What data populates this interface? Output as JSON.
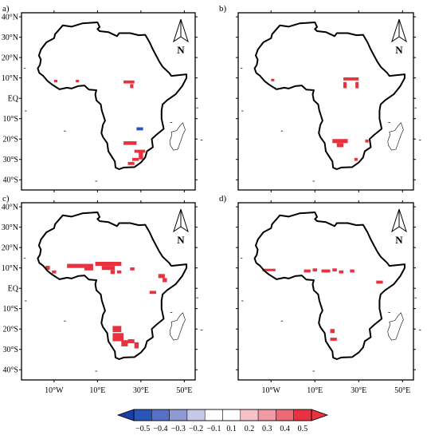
{
  "panels": [
    {
      "label": "a)",
      "show_y_labels": true,
      "show_x_labels": false,
      "cells": [
        {
          "lon": -10,
          "lat": 8.5,
          "w": 1.5,
          "h": 1.2,
          "v": 0.45
        },
        {
          "lon": 0,
          "lat": 8.5,
          "w": 1.5,
          "h": 1.2,
          "v": 0.45
        },
        {
          "lon": 22,
          "lat": 8,
          "w": 5,
          "h": 1.5,
          "v": 0.45
        },
        {
          "lon": 25,
          "lat": 6,
          "w": 1.5,
          "h": 2,
          "v": 0.45
        },
        {
          "lon": 28,
          "lat": -15,
          "w": 3,
          "h": 1.5,
          "v": -0.45
        },
        {
          "lon": 22,
          "lat": -22,
          "w": 6,
          "h": 1.8,
          "v": 0.45
        },
        {
          "lon": 27,
          "lat": -26,
          "w": 5,
          "h": 1.5,
          "v": 0.45
        },
        {
          "lon": 29,
          "lat": -28,
          "w": 2,
          "h": 4,
          "v": 0.45
        },
        {
          "lon": 26,
          "lat": -30,
          "w": 3,
          "h": 1.5,
          "v": 0.45
        },
        {
          "lon": 24,
          "lat": -32,
          "w": 3,
          "h": 1.5,
          "v": 0.45
        }
      ]
    },
    {
      "label": "b)",
      "show_y_labels": false,
      "show_x_labels": false,
      "cells": [
        {
          "lon": -10,
          "lat": 9,
          "w": 1.5,
          "h": 1.2,
          "v": 0.45
        },
        {
          "lon": 23,
          "lat": 9.5,
          "w": 7,
          "h": 1.5,
          "v": 0.45
        },
        {
          "lon": 23,
          "lat": 6.5,
          "w": 1.5,
          "h": 3,
          "v": 0.45
        },
        {
          "lon": 28.5,
          "lat": 6.5,
          "w": 1.5,
          "h": 3,
          "v": 0.45
        },
        {
          "lon": 18,
          "lat": -21,
          "w": 7,
          "h": 2,
          "v": 0.45
        },
        {
          "lon": 20,
          "lat": -23,
          "w": 3,
          "h": 2,
          "v": 0.45
        },
        {
          "lon": 33,
          "lat": -21,
          "w": 1.5,
          "h": 1.5,
          "v": 0.45
        },
        {
          "lon": 28,
          "lat": -30,
          "w": 1.5,
          "h": 1.5,
          "v": 0.45
        }
      ]
    },
    {
      "label": "c)",
      "show_y_labels": true,
      "show_x_labels": true,
      "cells": [
        {
          "lon": -14,
          "lat": 10,
          "w": 2,
          "h": 2,
          "v": 0.45
        },
        {
          "lon": -11,
          "lat": 8,
          "w": 2,
          "h": 1.5,
          "v": 0.45
        },
        {
          "lon": -4,
          "lat": 11,
          "w": 12,
          "h": 2,
          "v": 0.45
        },
        {
          "lon": 4,
          "lat": 9.5,
          "w": 4,
          "h": 1.5,
          "v": 0.45
        },
        {
          "lon": 9,
          "lat": 12,
          "w": 12,
          "h": 2,
          "v": 0.45
        },
        {
          "lon": 12,
          "lat": 10,
          "w": 6,
          "h": 2,
          "v": 0.45
        },
        {
          "lon": 16,
          "lat": 8,
          "w": 2,
          "h": 2,
          "v": 0.45
        },
        {
          "lon": 19,
          "lat": 8,
          "w": 2,
          "h": 1.5,
          "v": 0.45
        },
        {
          "lon": 25,
          "lat": 9.5,
          "w": 2,
          "h": 1.5,
          "v": 0.45
        },
        {
          "lon": 38,
          "lat": 6,
          "w": 3,
          "h": 2,
          "v": 0.45
        },
        {
          "lon": 40,
          "lat": 4,
          "w": 2,
          "h": 2,
          "v": 0.45
        },
        {
          "lon": 34,
          "lat": -2,
          "w": 3,
          "h": 1.5,
          "v": 0.45
        },
        {
          "lon": 17,
          "lat": -20,
          "w": 4,
          "h": 3,
          "v": 0.45
        },
        {
          "lon": 17,
          "lat": -24,
          "w": 5,
          "h": 4,
          "v": 0.45
        },
        {
          "lon": 21,
          "lat": -27,
          "w": 3,
          "h": 3,
          "v": 0.45
        },
        {
          "lon": 24,
          "lat": -26,
          "w": 3,
          "h": 2,
          "v": 0.45
        },
        {
          "lon": 27,
          "lat": -28,
          "w": 2,
          "h": 3,
          "v": 0.45
        }
      ]
    },
    {
      "label": "d)",
      "show_y_labels": false,
      "show_x_labels": true,
      "cells": [
        {
          "lon": -14,
          "lat": 9,
          "w": 6,
          "h": 1.2,
          "v": 0.45
        },
        {
          "lon": 5,
          "lat": 8.5,
          "w": 3,
          "h": 1.5,
          "v": 0.45
        },
        {
          "lon": 9,
          "lat": 9,
          "w": 2,
          "h": 1.5,
          "v": 0.45
        },
        {
          "lon": 13,
          "lat": 8.5,
          "w": 4,
          "h": 1.5,
          "v": 0.45
        },
        {
          "lon": 18,
          "lat": 9,
          "w": 2,
          "h": 1.5,
          "v": 0.45
        },
        {
          "lon": 21,
          "lat": 8,
          "w": 2,
          "h": 1.5,
          "v": 0.45
        },
        {
          "lon": 26,
          "lat": 8.5,
          "w": 2,
          "h": 1.5,
          "v": 0.45
        },
        {
          "lon": 38,
          "lat": 3,
          "w": 3,
          "h": 1.5,
          "v": 0.45
        },
        {
          "lon": 17,
          "lat": -21,
          "w": 2,
          "h": 2,
          "v": 0.45
        },
        {
          "lon": 17,
          "lat": -25,
          "w": 3,
          "h": 1.5,
          "v": 0.45
        }
      ]
    }
  ],
  "axes": {
    "lon_min": -25,
    "lon_max": 55,
    "lat_min": -45,
    "lat_max": 42,
    "y_ticks": [
      {
        "value": 40,
        "label": "40°N"
      },
      {
        "value": 30,
        "label": "30°N"
      },
      {
        "value": 20,
        "label": "20°N"
      },
      {
        "value": 10,
        "label": "10°N"
      },
      {
        "value": 0,
        "label": "EQ"
      },
      {
        "value": -10,
        "label": "10°S"
      },
      {
        "value": -20,
        "label": "20°S"
      },
      {
        "value": -30,
        "label": "30°S"
      },
      {
        "value": -40,
        "label": "40°S"
      }
    ],
    "x_ticks": [
      {
        "value": -10,
        "label": "10°W"
      },
      {
        "value": 10,
        "label": "10°E"
      },
      {
        "value": 30,
        "label": "30°E"
      },
      {
        "value": 50,
        "label": "50°E"
      }
    ]
  },
  "north_arrow": {
    "label": "N"
  },
  "colorbar": {
    "tick_labels": [
      "−0.5",
      "−0.4",
      "−0.3",
      "−0.2",
      "−0.1",
      "0.1",
      "0.2",
      "0.3",
      "0.4",
      "0.5"
    ],
    "colors": [
      "#2a55b8",
      "#5570c4",
      "#8f9ad3",
      "#c5c9e8",
      "#ffffff",
      "#ffffff",
      "#f6c3c8",
      "#ef9aa3",
      "#ea6a77",
      "#e8323f"
    ],
    "low_extend_color": "#1a3ea6",
    "high_extend_color": "#e8323f"
  },
  "colors": {
    "positive": "#e8323f",
    "negative": "#2a55b8",
    "coastline": "#000000"
  }
}
